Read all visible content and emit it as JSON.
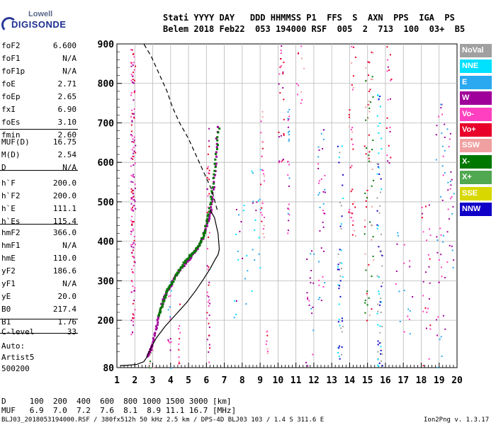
{
  "logo": {
    "line1": "Lowell",
    "line2": "DIGISONDE"
  },
  "header": {
    "labels": "Stati YYYY DAY   DDD HHMMSS P1  FFS  S  AXN  PPS  IGA  PS",
    "values": "Belem 2018 Feb22  053 194000 RSF  005  2  713  100  03+  B5"
  },
  "params": [
    {
      "name": "foF2",
      "value": "6.600"
    },
    {
      "name": "foF1",
      "value": "N/A"
    },
    {
      "name": "foF1p",
      "value": "N/A"
    },
    {
      "name": "foE",
      "value": "2.71"
    },
    {
      "name": "foEp",
      "value": "2.65"
    },
    {
      "name": "fxI",
      "value": "6.90"
    },
    {
      "name": "foEs",
      "value": "3.10"
    },
    {
      "name": "fmin",
      "value": "2.60"
    },
    {
      "name": "MUF(D)",
      "value": "16.75"
    },
    {
      "name": "M(D)",
      "value": "2.54"
    },
    {
      "name": "D",
      "value": "N/A"
    },
    {
      "name": "h`F",
      "value": "200.0"
    },
    {
      "name": "h`F2",
      "value": "200.0"
    },
    {
      "name": "h`E",
      "value": "111.1"
    },
    {
      "name": "h`Es",
      "value": "115.4"
    },
    {
      "name": "hmF2",
      "value": "366.0"
    },
    {
      "name": "hmF1",
      "value": "N/A"
    },
    {
      "name": "hmE",
      "value": "110.0"
    },
    {
      "name": "yF2",
      "value": "186.6"
    },
    {
      "name": "yF1",
      "value": "N/A"
    },
    {
      "name": "yE",
      "value": "20.0"
    },
    {
      "name": "B0",
      "value": "217.4"
    },
    {
      "name": "B1",
      "value": "1.76"
    },
    {
      "name": "C-level",
      "value": "33"
    }
  ],
  "auto": {
    "line1": "Auto:",
    "line2": "Artist5",
    "line3": "500200"
  },
  "legend": [
    {
      "label": "NoVal",
      "color": "#a0a0a0"
    },
    {
      "label": "NNE",
      "color": "#00e0ff"
    },
    {
      "label": "E",
      "color": "#2aa8f0"
    },
    {
      "label": "W",
      "color": "#a0009a"
    },
    {
      "label": "Vo-",
      "color": "#ff40c0"
    },
    {
      "label": "Vo+",
      "color": "#e8002a"
    },
    {
      "label": "SSW",
      "color": "#f0a0a0"
    },
    {
      "label": "X-",
      "color": "#007800"
    },
    {
      "label": "X+",
      "color": "#50a850"
    },
    {
      "label": "SSE",
      "color": "#d8d800"
    },
    {
      "label": "NNW",
      "color": "#1000c8"
    }
  ],
  "footer": {
    "d_row": "D     100  200  400  600  800 1000 1500 3000 [km]",
    "muf_row": "MUF   6.9  7.0  7.2  7.6  8.1  8.9 11.1 16.7 [MHz]",
    "file_info": "BLJ03_2018053194000.RSF / 380fx512h 50 kHz 2.5 km / DPS-4D BLJ03 103 / 1.4 S 311.6 E",
    "version": "Ion2Png v. 1.3.17"
  },
  "chart_data": {
    "type": "scatter",
    "xlim": [
      1,
      20
    ],
    "ylim": [
      80,
      900
    ],
    "xticks": [
      "1",
      "2",
      "3",
      "4",
      "5",
      "6",
      "7",
      "8",
      "9",
      "10",
      "11",
      "12",
      "13",
      "14",
      "15",
      "16",
      "17",
      "18",
      "19",
      "20"
    ],
    "yticks": [
      "80",
      "200",
      "300",
      "400",
      "500",
      "600",
      "700",
      "800",
      "900"
    ],
    "xlabel": "",
    "ylabel": "",
    "grid": true,
    "profile_solid": {
      "x": [
        1.2,
        1.6,
        2.1,
        2.5,
        2.65,
        2.75,
        2.9,
        3.2,
        3.7,
        4.3,
        4.9,
        5.4,
        5.85,
        6.2,
        6.5,
        6.65,
        6.72,
        6.65,
        6.45,
        6.2
      ],
      "y": [
        85,
        86,
        88,
        95,
        105,
        115,
        130,
        155,
        185,
        215,
        245,
        275,
        305,
        330,
        355,
        366,
        380,
        420,
        460,
        480
      ]
    },
    "profile_dash": {
      "x": [
        6.6,
        6.3,
        5.9,
        5.5,
        5.0,
        4.5,
        4.1,
        3.8,
        3.5,
        3.2,
        2.9,
        2.7,
        2.5
      ],
      "y": [
        480,
        530,
        570,
        610,
        660,
        700,
        740,
        780,
        810,
        840,
        870,
        885,
        900
      ]
    },
    "trace_W": {
      "x": [
        2.7,
        2.85,
        3.0,
        3.2,
        3.4,
        3.6,
        3.8,
        4.0,
        4.3,
        4.6,
        4.9,
        5.2,
        5.5,
        5.8,
        6.0,
        6.2,
        6.35,
        6.5,
        6.6
      ],
      "y": [
        110,
        125,
        145,
        185,
        225,
        255,
        275,
        290,
        315,
        335,
        350,
        365,
        385,
        410,
        440,
        470,
        520,
        600,
        700
      ]
    },
    "trace_X": {
      "x": [
        3.3,
        3.5,
        3.7,
        3.9,
        4.2,
        4.5,
        4.8,
        5.1,
        5.4,
        5.7,
        5.9,
        6.1,
        6.3,
        6.5,
        6.7
      ],
      "y": [
        210,
        235,
        265,
        285,
        305,
        330,
        350,
        365,
        380,
        400,
        425,
        470,
        530,
        610,
        700
      ]
    }
  }
}
